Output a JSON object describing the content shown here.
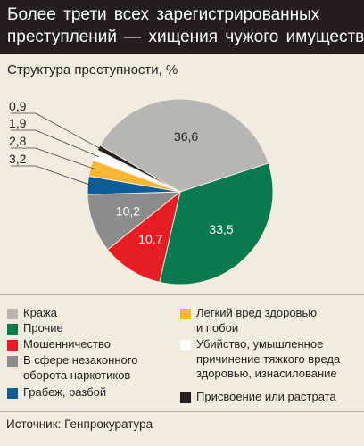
{
  "header": {
    "title_line1": "Более трети всех зарегистрированных",
    "title_line2": "преступлений — хищения чужого имущества"
  },
  "chart_data": {
    "type": "pie",
    "title": "Структура преступности, %",
    "slices": [
      {
        "label": "Кража",
        "value": 36.6,
        "color": "#b8b6b3",
        "label_text_color": "#222222"
      },
      {
        "label": "Прочие",
        "value": 33.5,
        "color": "#087a4d",
        "label_text_color": "#ffffff"
      },
      {
        "label": "Мошенничество",
        "value": 10.7,
        "color": "#e61e24",
        "label_text_color": "#ffffff"
      },
      {
        "label": "В сфере незаконного\nоборота наркотиков",
        "value": 10.2,
        "color": "#8c8c8c",
        "label_text_color": "#ffffff"
      },
      {
        "label": "Грабеж, разбой",
        "value": 3.2,
        "color": "#0c5c97",
        "label_text_color": "#222222"
      },
      {
        "label": "Легкий вред здоровью\nи побои",
        "value": 2.8,
        "color": "#fbb731",
        "label_text_color": "#222222"
      },
      {
        "label": "Убийство, умышленное\nпричинение тяжкого вреда\nздоровью, изнасилование",
        "value": 1.9,
        "color": "#ffffff",
        "label_text_color": "#222222"
      },
      {
        "label": "Присвоение или растрата",
        "value": 0.9,
        "color": "#231f20",
        "label_text_color": "#222222"
      }
    ],
    "value_labels": [
      "36,6",
      "33,5",
      "10,7",
      "10,2",
      "3,2",
      "2,8",
      "1,9",
      "0,9"
    ],
    "legend_placement": "bottom"
  },
  "source": "Источник: Генпрокуратура"
}
